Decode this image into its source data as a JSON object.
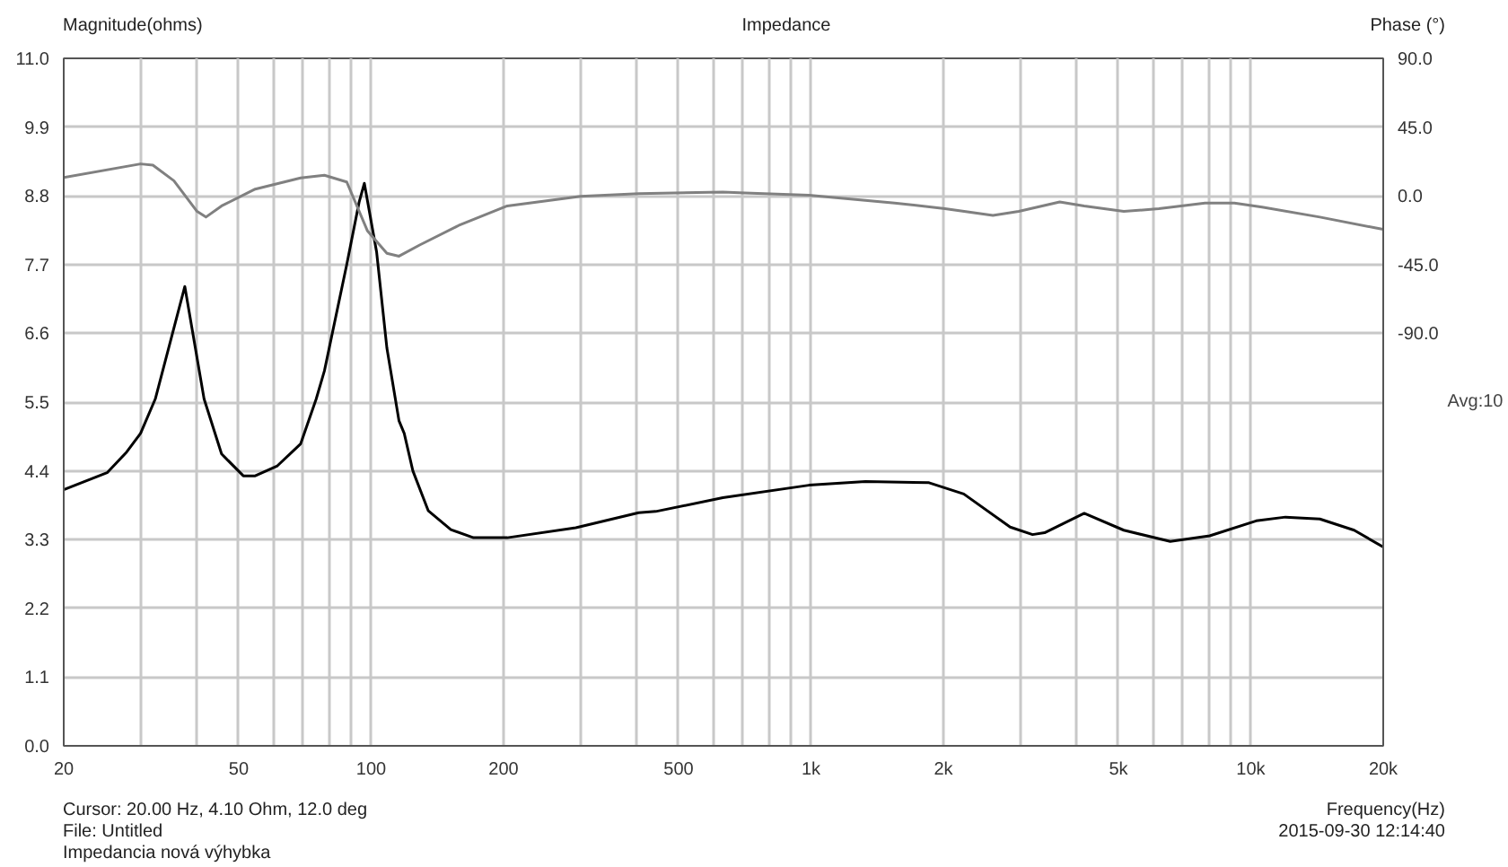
{
  "chart_data": {
    "type": "line",
    "title": "Impedance",
    "xlabel": "Frequency(Hz)",
    "ylabel": "Magnitude(ohms)",
    "y2label": "Phase (°)",
    "log": "x",
    "grid": true,
    "xlim": [
      20,
      20000
    ],
    "xticks": [
      20,
      {
        "value": 30,
        "label": null
      },
      {
        "value": 40,
        "label": null
      },
      50,
      {
        "value": 60,
        "label": null
      },
      {
        "value": 70,
        "label": null
      },
      {
        "value": 80,
        "label": null
      },
      {
        "value": 90,
        "label": null
      },
      100,
      200,
      {
        "value": 300,
        "label": null
      },
      {
        "value": 400,
        "label": null
      },
      500,
      {
        "value": 600,
        "label": null
      },
      {
        "value": 700,
        "label": null
      },
      {
        "value": 800,
        "label": null
      },
      {
        "value": 900,
        "label": null
      },
      {
        "value": 1000,
        "label": "1k"
      },
      {
        "value": 2000,
        "label": "2k"
      },
      {
        "value": 3000,
        "label": null
      },
      {
        "value": 4000,
        "label": null
      },
      {
        "value": 5000,
        "label": "5k"
      },
      {
        "value": 6000,
        "label": null
      },
      {
        "value": 7000,
        "label": null
      },
      {
        "value": 8000,
        "label": null
      },
      {
        "value": 9000,
        "label": null
      },
      {
        "value": 10000,
        "label": "10k"
      },
      {
        "value": 20000,
        "label": "20k"
      }
    ],
    "ylim": [
      0,
      11
    ],
    "yticks": [
      {
        "value": 0,
        "label": "0.0"
      },
      1.1,
      2.2,
      3.3,
      4.4,
      5.5,
      6.6,
      7.7,
      8.8,
      9.9,
      {
        "value": 11,
        "label": "11.0"
      }
    ],
    "y2lim": [
      -360,
      90
    ],
    "y2ticks": [
      {
        "value": 90,
        "label": "90.0"
      },
      {
        "value": 45,
        "label": "45.0"
      },
      {
        "value": 0,
        "label": "0.0"
      },
      {
        "value": -45,
        "label": "-45.0"
      },
      {
        "value": -90,
        "label": "-90.0"
      }
    ],
    "series": [
      {
        "color": "#000000",
        "x": [
          20,
          25.1,
          27.8,
          29.9,
          32.3,
          37.7,
          41.7,
          45.7,
          51.2,
          54.5,
          61.2,
          69.1,
          75.0,
          78.3,
          88.0,
          93.9,
          96.5,
          102.9,
          108.6,
          115.7,
          118.9,
          124.4,
          134.9,
          151.8,
          170.9,
          203.9,
          291.9,
          405.7,
          443.6,
          630.4,
          989,
          1330,
          1855,
          2225,
          2837,
          3190,
          3397,
          4180,
          5143,
          6558,
          8062,
          10284,
          11987,
          14353,
          17176,
          20000
        ],
        "values": [
          4.1,
          4.37,
          4.7,
          5.0,
          5.55,
          7.35,
          5.55,
          4.67,
          4.32,
          4.32,
          4.48,
          4.83,
          5.55,
          6.0,
          7.7,
          8.7,
          9.0,
          7.9,
          6.36,
          5.2,
          5.0,
          4.4,
          3.76,
          3.46,
          3.33,
          3.33,
          3.49,
          3.73,
          3.75,
          3.97,
          4.17,
          4.23,
          4.21,
          4.03,
          3.5,
          3.38,
          3.41,
          3.72,
          3.45,
          3.27,
          3.36,
          3.6,
          3.66,
          3.63,
          3.45,
          3.18
        ]
      },
      {
        "color": "#808080",
        "axis": "y2",
        "x": [
          20,
          29.9,
          31.9,
          35.6,
          40.2,
          42.1,
          45.7,
          54.5,
          69.1,
          78.3,
          88.0,
          98.1,
          108.6,
          115.7,
          128.9,
          158.1,
          203.9,
          299.3,
          405.7,
          630.4,
          708.3,
          989,
          1550,
          2017,
          2592,
          2967,
          3677,
          4180,
          5143,
          6178,
          7868,
          9175,
          10609,
          14353,
          20000
        ],
        "values": [
          12,
          20.9,
          20.1,
          9.9,
          -10.2,
          -13.9,
          -6.6,
          4.4,
          11.7,
          13.5,
          9.1,
          -23,
          -37.6,
          -39.5,
          -32.2,
          -19.4,
          -6.6,
          -0.3,
          1.5,
          2.5,
          1.9,
          0.4,
          -4.7,
          -8.4,
          -12.8,
          -10.2,
          -4.0,
          -6.6,
          -10.2,
          -8.4,
          -4.7,
          -4.7,
          -7.4,
          -13.9,
          -22
        ]
      }
    ],
    "annotations": [
      "Avg:10",
      "Cursor: 20.00 Hz, 4.10 Ohm, 12.0 deg",
      "File: Untitled",
      "Impedancia nová výhybka",
      "2015-09-30 12:14:40"
    ]
  }
}
